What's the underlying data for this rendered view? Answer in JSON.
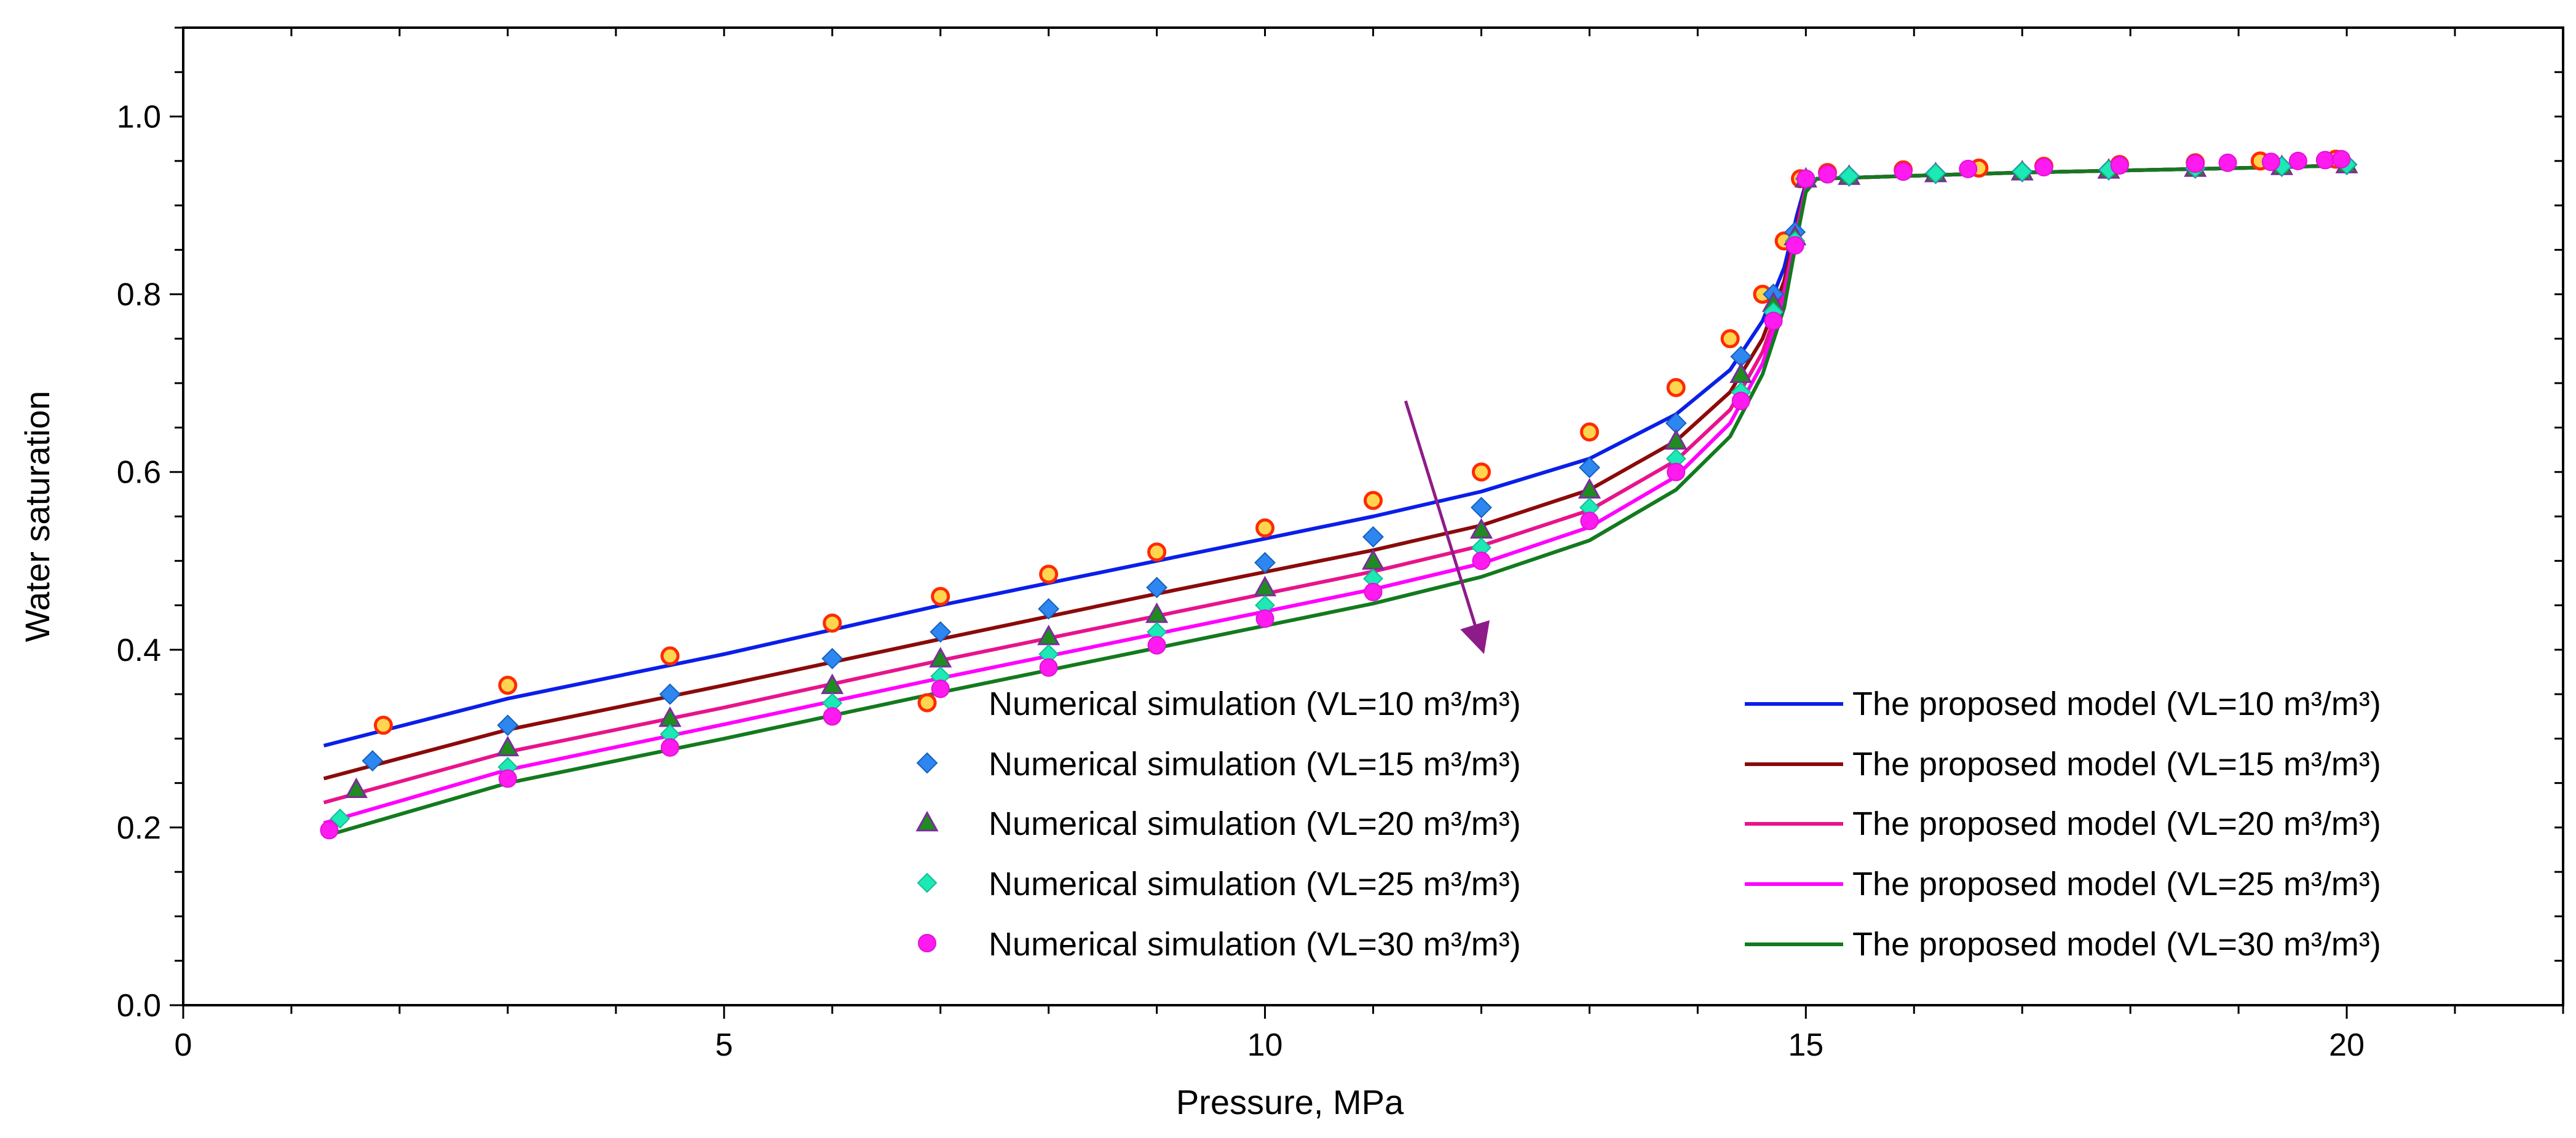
{
  "chart_data": {
    "type": "scatter",
    "title": "",
    "xlabel": "Pressure, MPa",
    "ylabel": "Water saturation",
    "xlim": [
      0,
      22
    ],
    "ylim": [
      0,
      1.1
    ],
    "xticks": [
      0,
      5,
      10,
      15,
      20
    ],
    "xtick_labels": [
      "0",
      "5",
      "10",
      "15",
      "20"
    ],
    "yticks": [
      0,
      0.2,
      0.4,
      0.6,
      0.8,
      1.0
    ],
    "ytick_labels": [
      "0.0",
      "0.2",
      "0.4",
      "0.6",
      "0.8",
      "1.0"
    ],
    "legend_position": "lower-right",
    "colors": {
      "sim_vl10_fill": "#FFD54F",
      "sim_vl10_edge": "#FF2A00",
      "sim_vl15": "#2E86F0",
      "sim_vl20_fill": "#1E8C1E",
      "sim_vl20_edge": "#7A2D9C",
      "sim_vl25": "#1DE9B6",
      "sim_vl30": "#FF1AEF",
      "model_vl10": "#0A1FE8",
      "model_vl15": "#8B0A0A",
      "model_vl20": "#E8138C",
      "model_vl25": "#FF00FF",
      "model_vl30": "#137A1E",
      "arrow": "#8E1C88"
    },
    "annotation": {
      "type": "arrow",
      "meaning": "increasing VL",
      "from": [
        11.3,
        0.68
      ],
      "to": [
        12.0,
        0.405
      ]
    },
    "series": [
      {
        "name": "Numerical simulation (VL=10 m³/m³)",
        "kind": "scatter",
        "marker": "circle",
        "x": [
          1.85,
          3,
          4.5,
          6,
          7,
          8,
          9,
          10,
          11,
          12,
          13,
          13.8,
          14.3,
          14.6,
          14.8,
          14.95,
          15.2,
          15.9,
          16.6,
          17.2,
          17.9,
          18.6,
          19.2,
          19.9
        ],
        "y": [
          0.315,
          0.36,
          0.393,
          0.43,
          0.46,
          0.485,
          0.51,
          0.537,
          0.568,
          0.6,
          0.645,
          0.695,
          0.75,
          0.8,
          0.86,
          0.93,
          0.937,
          0.94,
          0.942,
          0.944,
          0.946,
          0.948,
          0.95,
          0.952
        ]
      },
      {
        "name": "Numerical simulation (VL=15 m³/m³)",
        "kind": "scatter",
        "marker": "diamond",
        "x": [
          1.75,
          3,
          4.5,
          6,
          7,
          8,
          9,
          10,
          11,
          12,
          13,
          13.8,
          14.4,
          14.7,
          14.9,
          15.0,
          15.4,
          16.2,
          17.0,
          17.8,
          18.6,
          19.4,
          20.0
        ],
        "y": [
          0.275,
          0.315,
          0.35,
          0.39,
          0.42,
          0.446,
          0.47,
          0.498,
          0.527,
          0.56,
          0.605,
          0.655,
          0.73,
          0.8,
          0.87,
          0.93,
          0.933,
          0.936,
          0.938,
          0.94,
          0.942,
          0.944,
          0.946
        ]
      },
      {
        "name": "Numerical simulation (VL=20 m³/m³)",
        "kind": "scatter",
        "marker": "triangle",
        "x": [
          1.6,
          3,
          4.5,
          6,
          7,
          8,
          9,
          10,
          11,
          12,
          13,
          13.8,
          14.4,
          14.7,
          14.9,
          15.0,
          15.4,
          16.2,
          17.0,
          17.8,
          18.6,
          19.4,
          20.0
        ],
        "y": [
          0.243,
          0.29,
          0.323,
          0.36,
          0.39,
          0.415,
          0.44,
          0.47,
          0.5,
          0.535,
          0.58,
          0.635,
          0.71,
          0.79,
          0.865,
          0.93,
          0.933,
          0.936,
          0.938,
          0.94,
          0.942,
          0.944,
          0.946
        ]
      },
      {
        "name": "Numerical simulation (VL=25 m³/m³)",
        "kind": "scatter",
        "marker": "diamond",
        "x": [
          1.45,
          3,
          4.5,
          6,
          7,
          8,
          9,
          10,
          11,
          12,
          13,
          13.8,
          14.4,
          14.7,
          14.9,
          15.0,
          15.4,
          16.2,
          17.0,
          17.8,
          18.6,
          19.4,
          20.0
        ],
        "y": [
          0.21,
          0.268,
          0.305,
          0.34,
          0.37,
          0.395,
          0.42,
          0.45,
          0.48,
          0.515,
          0.56,
          0.615,
          0.69,
          0.78,
          0.86,
          0.93,
          0.933,
          0.936,
          0.938,
          0.94,
          0.942,
          0.944,
          0.946
        ]
      },
      {
        "name": "Numerical simulation (VL=30 m³/m³)",
        "kind": "scatter",
        "marker": "circle",
        "x": [
          1.35,
          3,
          4.5,
          6,
          7,
          8,
          9,
          10,
          11,
          12,
          13,
          13.8,
          14.4,
          14.7,
          14.9,
          15.0,
          15.2,
          15.9,
          16.5,
          17.2,
          17.9,
          18.6,
          18.9,
          19.3,
          19.55,
          19.8,
          19.95
        ],
        "y": [
          0.197,
          0.255,
          0.29,
          0.325,
          0.356,
          0.38,
          0.405,
          0.435,
          0.465,
          0.5,
          0.545,
          0.6,
          0.68,
          0.77,
          0.855,
          0.93,
          0.935,
          0.938,
          0.941,
          0.943,
          0.945,
          0.947,
          0.948,
          0.949,
          0.95,
          0.951,
          0.952
        ]
      },
      {
        "name": "The proposed model (VL=10 m³/m³)",
        "kind": "line",
        "x": [
          1.3,
          3,
          5,
          7,
          9,
          11,
          12,
          13,
          13.8,
          14.3,
          14.6,
          14.8,
          14.92,
          15.0,
          15.1,
          17,
          19,
          20
        ],
        "y": [
          0.292,
          0.345,
          0.395,
          0.45,
          0.5,
          0.55,
          0.578,
          0.615,
          0.665,
          0.715,
          0.77,
          0.83,
          0.89,
          0.925,
          0.93,
          0.937,
          0.942,
          0.945
        ]
      },
      {
        "name": "The proposed model (VL=15 m³/m³)",
        "kind": "line",
        "x": [
          1.3,
          3,
          5,
          7,
          9,
          11,
          12,
          13,
          13.8,
          14.3,
          14.6,
          14.8,
          14.92,
          15.0,
          15.1,
          17,
          19,
          20
        ],
        "y": [
          0.255,
          0.31,
          0.36,
          0.412,
          0.463,
          0.512,
          0.54,
          0.58,
          0.635,
          0.69,
          0.75,
          0.815,
          0.88,
          0.922,
          0.93,
          0.937,
          0.942,
          0.945
        ]
      },
      {
        "name": "The proposed model (VL=20 m³/m³)",
        "kind": "line",
        "x": [
          1.3,
          3,
          5,
          7,
          9,
          11,
          12,
          13,
          13.8,
          14.3,
          14.6,
          14.8,
          14.92,
          15.0,
          15.1,
          17,
          19,
          20
        ],
        "y": [
          0.228,
          0.285,
          0.335,
          0.388,
          0.438,
          0.488,
          0.517,
          0.557,
          0.613,
          0.67,
          0.735,
          0.805,
          0.875,
          0.92,
          0.93,
          0.937,
          0.942,
          0.945
        ]
      },
      {
        "name": "The proposed model (VL=25 m³/m³)",
        "kind": "line",
        "x": [
          1.3,
          3,
          5,
          7,
          9,
          11,
          12,
          13,
          13.8,
          14.3,
          14.6,
          14.8,
          14.92,
          15.0,
          15.1,
          17,
          19,
          20
        ],
        "y": [
          0.205,
          0.265,
          0.316,
          0.368,
          0.418,
          0.468,
          0.497,
          0.538,
          0.595,
          0.655,
          0.722,
          0.795,
          0.87,
          0.918,
          0.93,
          0.937,
          0.942,
          0.945
        ]
      },
      {
        "name": "The proposed model (VL=30 m³/m³)",
        "kind": "line",
        "x": [
          1.3,
          3,
          5,
          7,
          9,
          11,
          12,
          13,
          13.8,
          14.3,
          14.6,
          14.8,
          14.92,
          15.0,
          15.1,
          17,
          19,
          20
        ],
        "y": [
          0.19,
          0.25,
          0.3,
          0.352,
          0.402,
          0.452,
          0.482,
          0.523,
          0.58,
          0.64,
          0.71,
          0.785,
          0.865,
          0.915,
          0.93,
          0.937,
          0.942,
          0.945
        ]
      }
    ],
    "legend": {
      "left": [
        {
          "label": "Numerical simulation (VL=10 m³/m³)",
          "series": 0
        },
        {
          "label": "Numerical simulation (VL=15 m³/m³)",
          "series": 1
        },
        {
          "label": "Numerical simulation (VL=20 m³/m³)",
          "series": 2
        },
        {
          "label": "Numerical simulation (VL=25 m³/m³)",
          "series": 3
        },
        {
          "label": "Numerical simulation (VL=30 m³/m³)",
          "series": 4
        }
      ],
      "right": [
        {
          "label": "The proposed model (VL=10 m³/m³)",
          "series": 5
        },
        {
          "label": "The proposed model (VL=15 m³/m³)",
          "series": 6
        },
        {
          "label": "The proposed model (VL=20 m³/m³)",
          "series": 7
        },
        {
          "label": "The proposed model (VL=25 m³/m³)",
          "series": 8
        },
        {
          "label": "The proposed model (VL=30 m³/m³)",
          "series": 9
        }
      ]
    }
  }
}
